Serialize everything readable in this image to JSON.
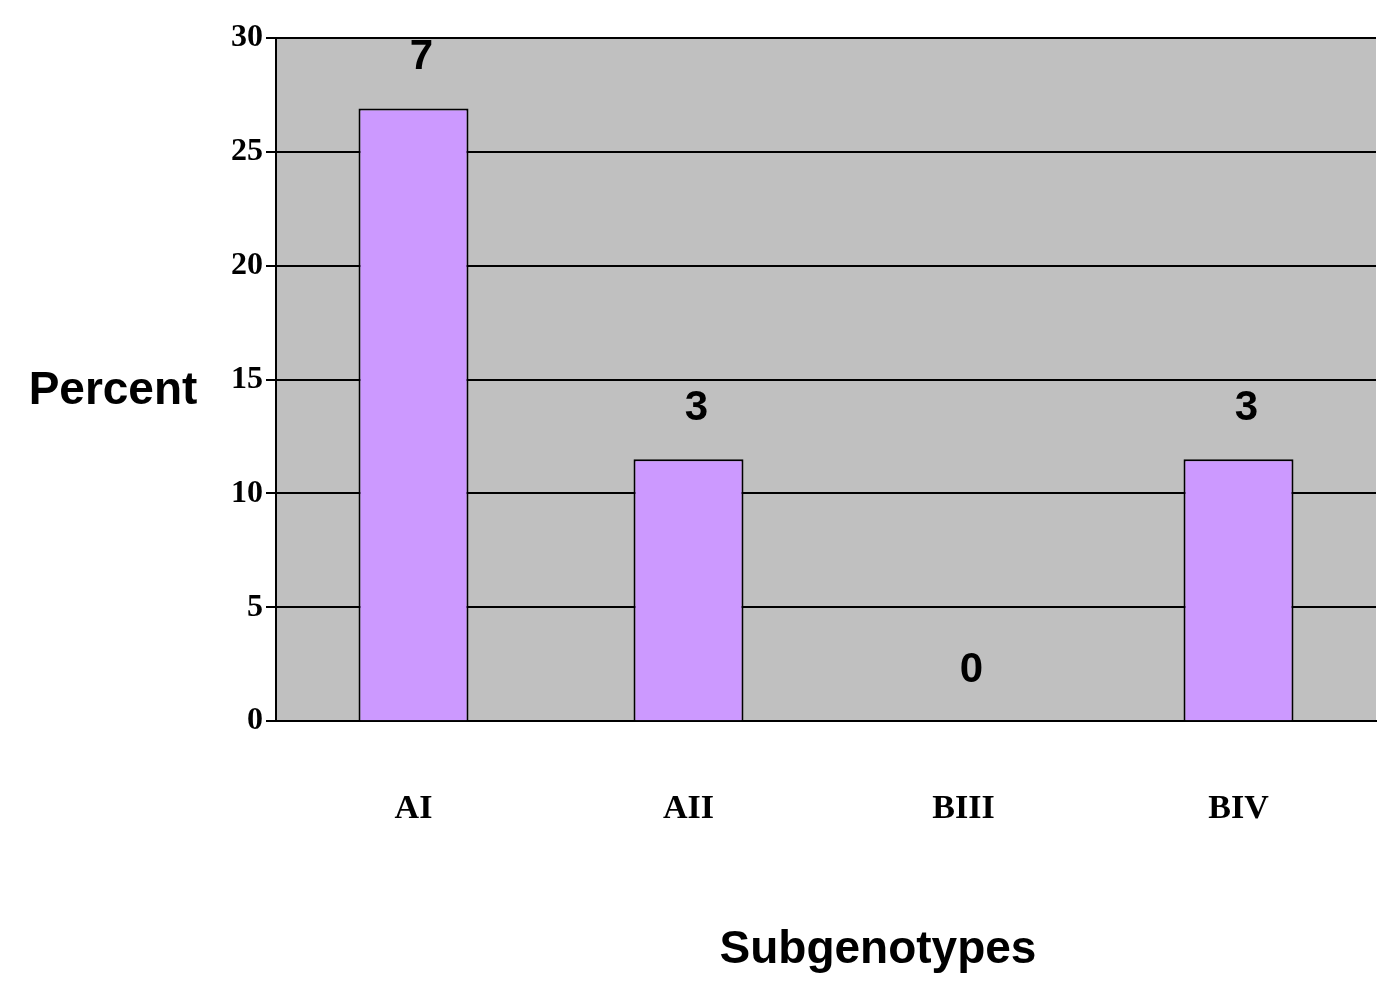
{
  "chart_data": {
    "type": "bar",
    "xlabel": "Subgenotypes",
    "ylabel": "Percent",
    "categories": [
      "AI",
      "AII",
      "BIII",
      "BIV"
    ],
    "values": [
      26.9,
      11.5,
      0,
      11.5
    ],
    "annotations": [
      {
        "text": "7",
        "x": "AI",
        "y": 26.9
      },
      {
        "text": "3",
        "x": "AII",
        "y": 11.5
      },
      {
        "text": "0",
        "x": "BIII",
        "y": 0
      },
      {
        "text": "3",
        "x": "BIV",
        "y": 11.5
      }
    ],
    "color": "#cc99ff",
    "ylim": [
      0,
      30
    ],
    "yticks": [
      0,
      5,
      10,
      15,
      20,
      25,
      30
    ],
    "grid": "y"
  }
}
